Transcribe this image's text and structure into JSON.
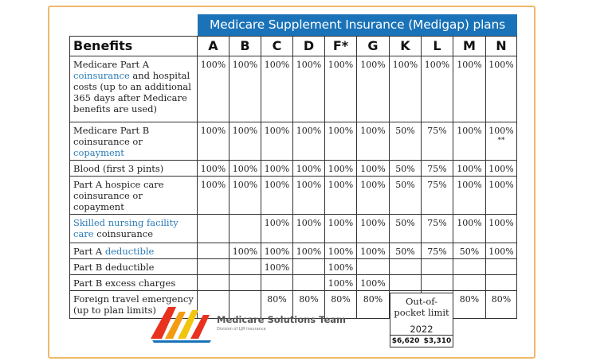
{
  "banner": "Medicare Supplement Insurance (Medigap) plans",
  "header": {
    "benefits": "Benefits",
    "plans": [
      "A",
      "B",
      "C",
      "D",
      "F*",
      "G",
      "K",
      "L",
      "M",
      "N"
    ]
  },
  "rows": [
    {
      "label_parts": [
        {
          "t": "Medicare Part A "
        },
        {
          "t": "coinsurance",
          "link": true
        },
        {
          "t": " and hospital costs (up to an additional 365 days after Medicare benefits are used)"
        }
      ],
      "values": [
        "100%",
        "100%",
        "100%",
        "100%",
        "100%",
        "100%",
        "100%",
        "100%",
        "100%",
        "100%"
      ],
      "row_class": "r1"
    },
    {
      "label_parts": [
        {
          "t": "Medicare Part B coinsurance or "
        },
        {
          "t": "copayment",
          "link": true
        }
      ],
      "values": [
        "100%",
        "100%",
        "100%",
        "100%",
        "100%",
        "100%",
        "50%",
        "75%",
        "100%",
        "100%"
      ],
      "note_n": "**",
      "row_class": "r2"
    },
    {
      "label_parts": [
        {
          "t": "Blood (first 3 pints)"
        }
      ],
      "values": [
        "100%",
        "100%",
        "100%",
        "100%",
        "100%",
        "100%",
        "50%",
        "75%",
        "100%",
        "100%"
      ],
      "row_class": "r3"
    },
    {
      "label_parts": [
        {
          "t": "Part A hospice care coinsurance or copayment"
        }
      ],
      "values": [
        "100%",
        "100%",
        "100%",
        "100%",
        "100%",
        "100%",
        "50%",
        "75%",
        "100%",
        "100%"
      ],
      "row_class": "r4"
    },
    {
      "label_parts": [
        {
          "t": "Skilled nursing facility care",
          "link": true
        },
        {
          "t": " coinsurance"
        }
      ],
      "values": [
        "",
        "",
        "100%",
        "100%",
        "100%",
        "100%",
        "50%",
        "75%",
        "100%",
        "100%"
      ],
      "row_class": "r5"
    },
    {
      "label_parts": [
        {
          "t": "Part A "
        },
        {
          "t": "deductible",
          "link": true
        }
      ],
      "values": [
        "",
        "100%",
        "100%",
        "100%",
        "100%",
        "100%",
        "50%",
        "75%",
        "50%",
        "100%"
      ],
      "row_class": "r6"
    },
    {
      "label_parts": [
        {
          "t": "Part B deductible"
        }
      ],
      "values": [
        "",
        "",
        "100%",
        "",
        "100%",
        "",
        "",
        "",
        "",
        ""
      ],
      "row_class": "r7"
    },
    {
      "label_parts": [
        {
          "t": "Part B excess charges"
        }
      ],
      "values": [
        "",
        "",
        "",
        "",
        "100%",
        "100%",
        "",
        "",
        "",
        ""
      ],
      "row_class": "r8"
    },
    {
      "label_parts": [
        {
          "t": "Foreign travel emergency (up to plan limits)"
        }
      ],
      "values": [
        "",
        "",
        "80%",
        "80%",
        "80%",
        "80%",
        "",
        "",
        "80%",
        "80%"
      ],
      "row_class": "r9"
    }
  ],
  "out_of_pocket": {
    "title": "Out-of-pocket limit",
    "year": "2022",
    "k": "$6,620",
    "l": "$3,310"
  },
  "logo": {
    "name": "Medicare Solutions Team",
    "sub": "Division of LJR Insurance",
    "colors": [
      "#e8321e",
      "#f39c12",
      "#f1c40f",
      "#1a73b8"
    ]
  }
}
